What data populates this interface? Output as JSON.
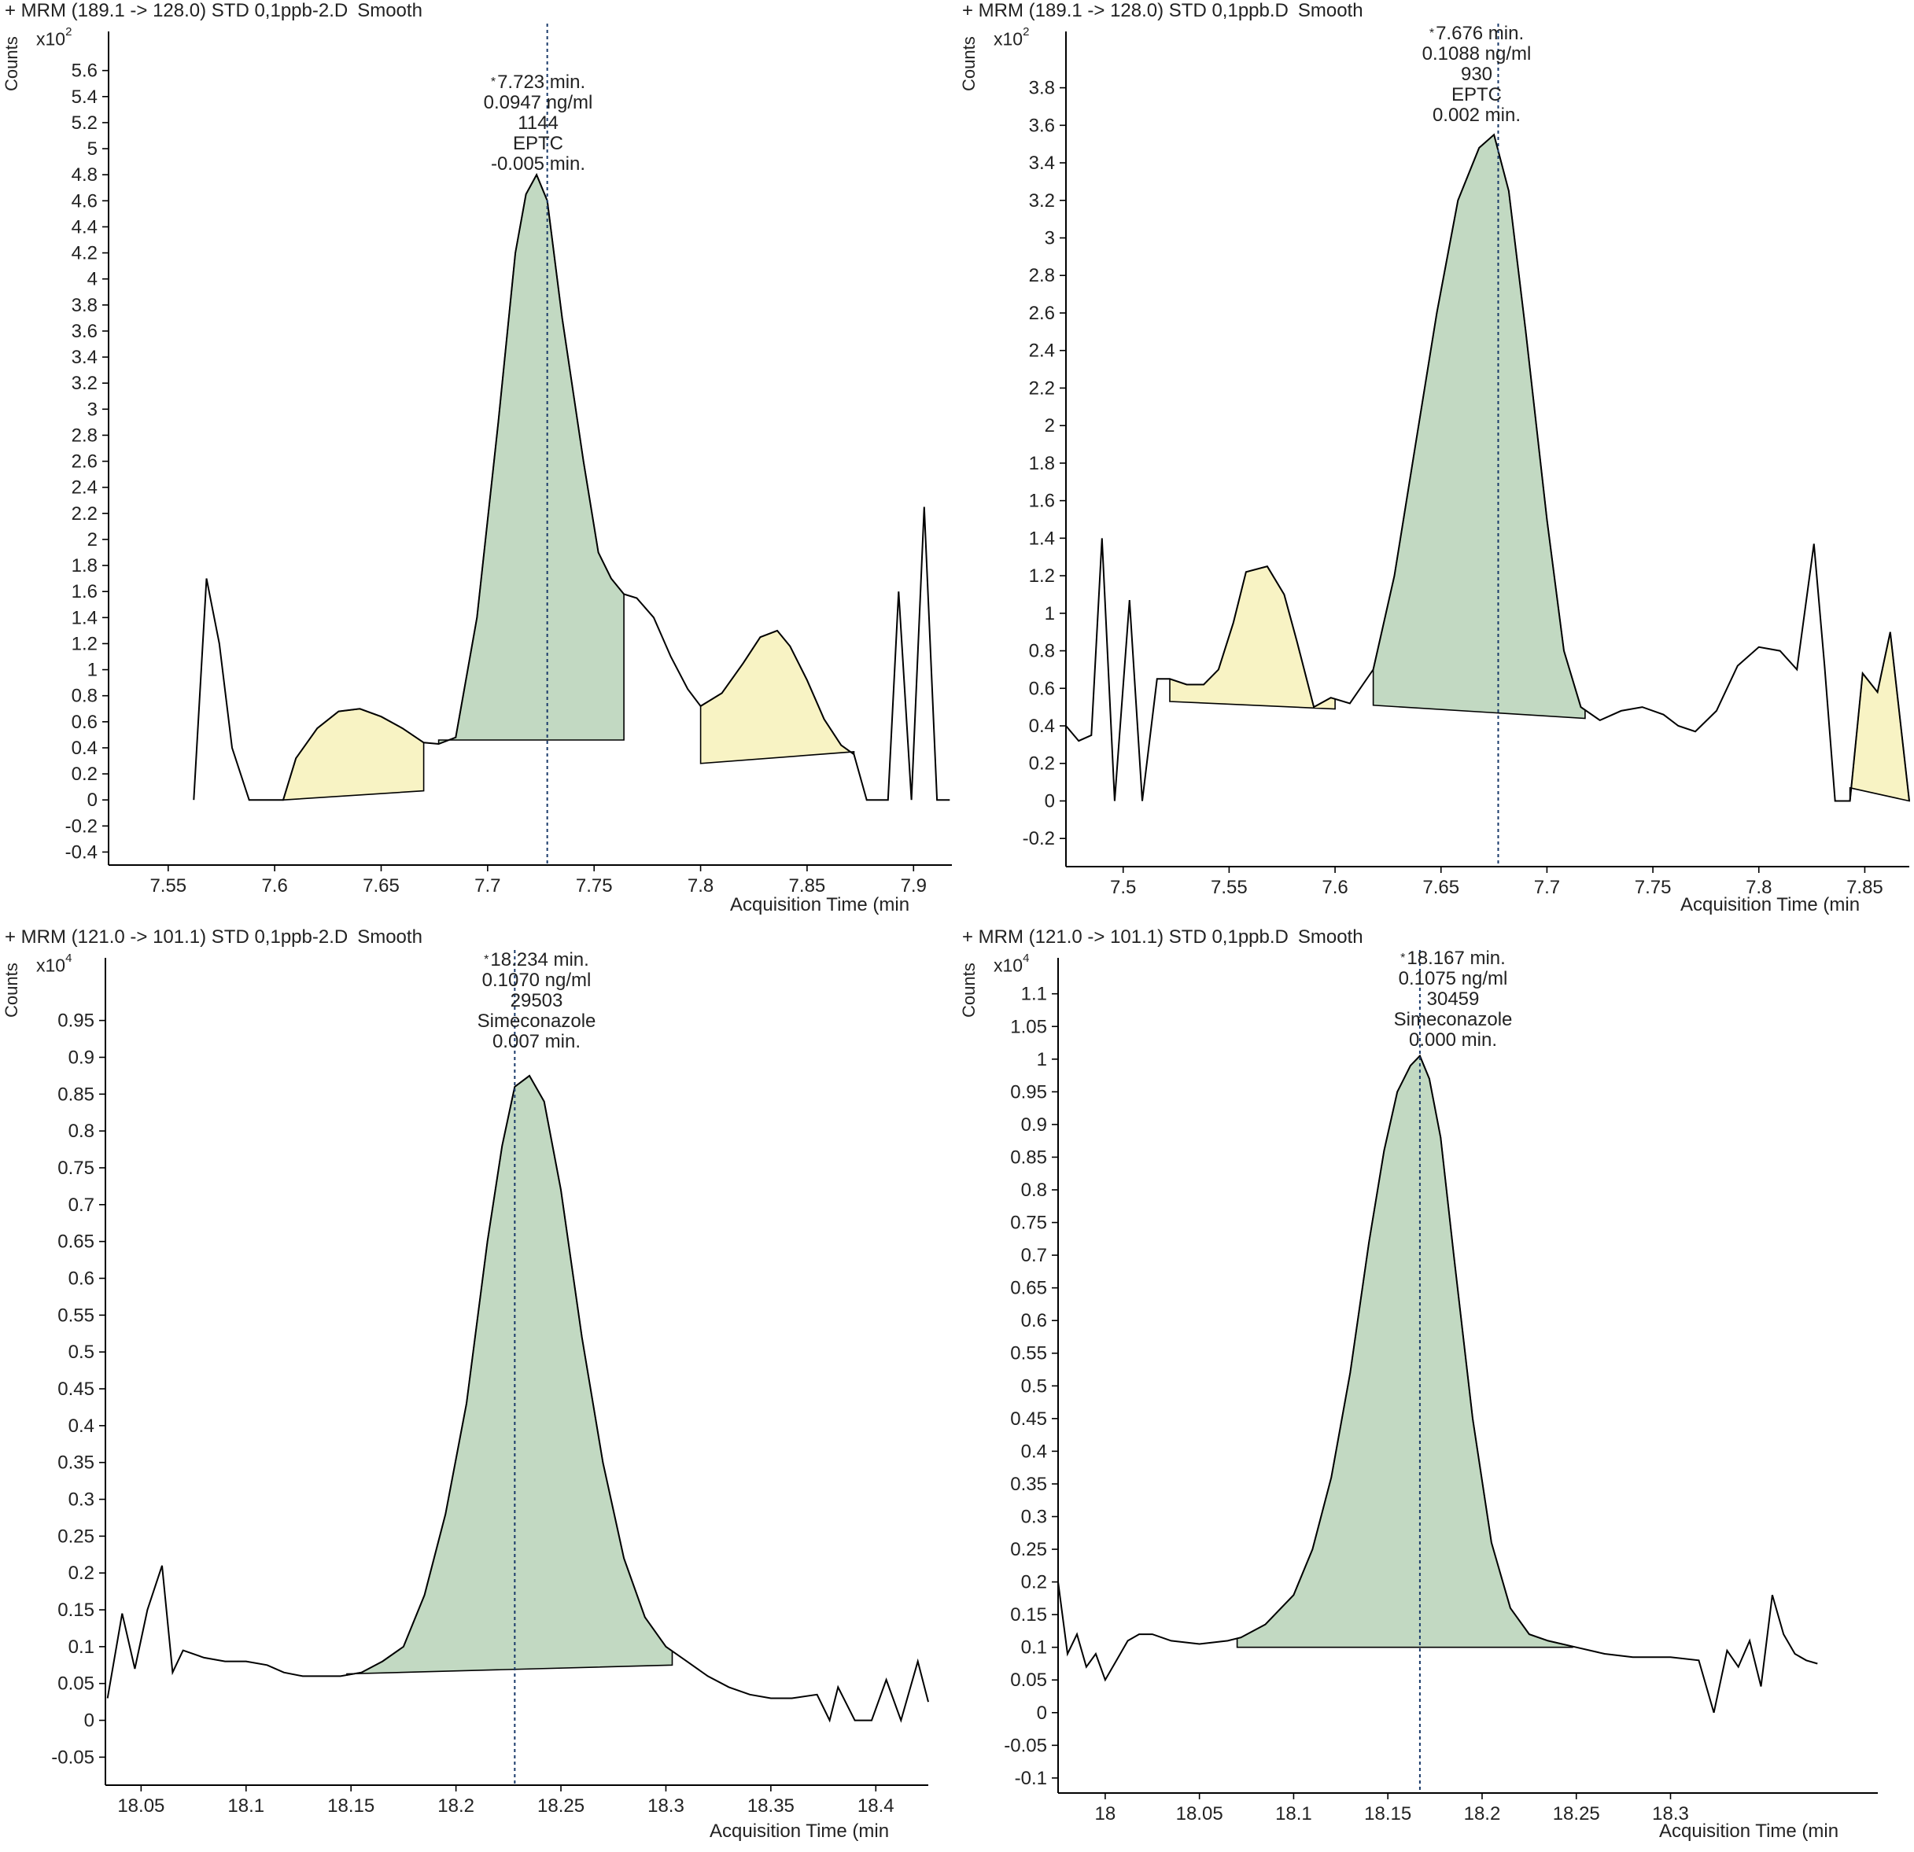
{
  "xlabel": "Acquisition Time (min",
  "ylabel": "Counts",
  "colors": {
    "peak_fill": "#c2d9c2",
    "minor_fill": "#f8f3c4",
    "trace": "#000000",
    "rt_line": "#1a3a6a"
  },
  "chart_data": [
    {
      "type": "line",
      "title": "+ MRM (189.1 -> 128.0) STD 0,1ppb-2.D",
      "mode": "Smooth",
      "multiplier": "x10",
      "multiplier_exp": "2",
      "xlim": [
        7.522,
        7.918
      ],
      "ylim": [
        -0.5,
        5.9
      ],
      "xticks": [
        "7.55",
        "7.6",
        "7.65",
        "7.7",
        "7.75",
        "7.8",
        "7.85",
        "7.9"
      ],
      "yticks": [
        "-0.4",
        "-0.2",
        "0",
        "0.2",
        "0.4",
        "0.6",
        "0.8",
        "1",
        "1.2",
        "1.4",
        "1.6",
        "1.8",
        "2",
        "2.2",
        "2.4",
        "2.6",
        "2.8",
        "3",
        "3.2",
        "3.4",
        "3.6",
        "3.8",
        "4",
        "4.2",
        "4.4",
        "4.6",
        "4.8",
        "5",
        "5.2",
        "5.4",
        "5.6"
      ],
      "x": [
        7.562,
        7.568,
        7.574,
        7.58,
        7.588,
        7.604,
        7.61,
        7.62,
        7.63,
        7.64,
        7.65,
        7.66,
        7.67,
        7.677,
        7.685,
        7.695,
        7.705,
        7.713,
        7.718,
        7.723,
        7.728,
        7.735,
        7.745,
        7.752,
        7.758,
        7.764,
        7.77,
        7.778,
        7.786,
        7.794,
        7.8,
        7.81,
        7.82,
        7.828,
        7.836,
        7.842,
        7.85,
        7.858,
        7.866,
        7.872,
        7.878,
        7.888,
        7.893,
        7.899,
        7.905,
        7.911,
        7.917
      ],
      "y": [
        0,
        1.7,
        1.2,
        0.4,
        0,
        0,
        0.32,
        0.55,
        0.68,
        0.7,
        0.64,
        0.55,
        0.44,
        0.43,
        0.48,
        1.4,
        2.9,
        4.2,
        4.65,
        4.8,
        4.6,
        3.7,
        2.6,
        1.9,
        1.7,
        1.58,
        1.55,
        1.4,
        1.1,
        0.85,
        0.72,
        0.82,
        1.05,
        1.25,
        1.3,
        1.18,
        0.92,
        0.62,
        0.42,
        0.35,
        0,
        0,
        1.6,
        0,
        2.25,
        0,
        0
      ],
      "peak": {
        "x_start": 7.677,
        "x_end": 7.764,
        "base_start": 0.46,
        "base_end": 0.46
      },
      "minor_peaks": [
        {
          "x_start": 7.604,
          "x_end": 7.67,
          "base_start": 0.0,
          "base_end": 0.07
        },
        {
          "x_start": 7.8,
          "x_end": 7.872,
          "base_start": 0.28,
          "base_end": 0.37
        }
      ],
      "rt": 7.728,
      "annotation": [
        "7.723 min.",
        "0.0947 ng/ml",
        "1144",
        "EPTC",
        "-0.005 min."
      ]
    },
    {
      "type": "line",
      "title": "+ MRM (189.1 -> 128.0) STD 0,1ppb.D",
      "mode": "Smooth",
      "multiplier": "x10",
      "multiplier_exp": "2",
      "xlim": [
        7.473,
        7.871
      ],
      "ylim": [
        -0.35,
        4.1
      ],
      "xticks": [
        "7.5",
        "7.55",
        "7.6",
        "7.65",
        "7.7",
        "7.75",
        "7.8",
        "7.85"
      ],
      "yticks": [
        "-0.2",
        "0",
        "0.2",
        "0.4",
        "0.6",
        "0.8",
        "1",
        "1.2",
        "1.4",
        "1.6",
        "1.8",
        "2",
        "2.2",
        "2.4",
        "2.6",
        "2.8",
        "3",
        "3.2",
        "3.4",
        "3.6",
        "3.8"
      ],
      "x": [
        7.473,
        7.479,
        7.485,
        7.49,
        7.496,
        7.503,
        7.509,
        7.516,
        7.522,
        7.53,
        7.538,
        7.545,
        7.552,
        7.558,
        7.568,
        7.576,
        7.582,
        7.59,
        7.598,
        7.607,
        7.618,
        7.628,
        7.638,
        7.648,
        7.658,
        7.668,
        7.675,
        7.682,
        7.69,
        7.7,
        7.708,
        7.716,
        7.725,
        7.735,
        7.745,
        7.755,
        7.762,
        7.77,
        7.78,
        7.79,
        7.8,
        7.81,
        7.818,
        7.826,
        7.831,
        7.836,
        7.84,
        7.843,
        7.849,
        7.856,
        7.862,
        7.871
      ],
      "y": [
        0.4,
        0.32,
        0.35,
        1.4,
        0,
        1.07,
        0,
        0.65,
        0.65,
        0.62,
        0.62,
        0.7,
        0.95,
        1.22,
        1.25,
        1.1,
        0.85,
        0.5,
        0.55,
        0.52,
        0.7,
        1.2,
        1.9,
        2.6,
        3.2,
        3.48,
        3.55,
        3.25,
        2.5,
        1.5,
        0.8,
        0.5,
        0.43,
        0.48,
        0.5,
        0.46,
        0.4,
        0.37,
        0.48,
        0.72,
        0.82,
        0.8,
        0.7,
        1.37,
        0.72,
        0,
        0,
        0,
        0.68,
        0.58,
        0.9,
        0
      ],
      "peak": {
        "x_start": 7.618,
        "x_end": 7.718,
        "base_start": 0.51,
        "base_end": 0.44
      },
      "minor_peaks": [
        {
          "x_start": 7.522,
          "x_end": 7.6,
          "base_start": 0.53,
          "base_end": 0.49
        },
        {
          "x_start": 7.843,
          "x_end": 7.871,
          "base_start": 0.07,
          "base_end": 0.0
        }
      ],
      "rt": 7.677,
      "annotation": [
        "7.676 min.",
        "0.1088 ng/ml",
        "930",
        "EPTC",
        "0.002 min."
      ]
    },
    {
      "type": "line",
      "title": "+ MRM (121.0 -> 101.1) STD 0,1ppb-2.D",
      "mode": "Smooth",
      "multiplier": "x10",
      "multiplier_exp": "4",
      "xlim": [
        18.033,
        18.425
      ],
      "ylim": [
        -0.088,
        1.035
      ],
      "xticks": [
        "18.05",
        "18.1",
        "18.15",
        "18.2",
        "18.25",
        "18.3",
        "18.35",
        "18.4"
      ],
      "yticks": [
        "-0.05",
        "0",
        "0.05",
        "0.1",
        "0.15",
        "0.2",
        "0.25",
        "0.3",
        "0.35",
        "0.4",
        "0.45",
        "0.5",
        "0.55",
        "0.6",
        "0.65",
        "0.7",
        "0.75",
        "0.8",
        "0.85",
        "0.9",
        "0.95"
      ],
      "x": [
        18.034,
        18.041,
        18.047,
        18.053,
        18.06,
        18.065,
        18.07,
        18.08,
        18.09,
        18.1,
        18.11,
        18.118,
        18.127,
        18.135,
        18.145,
        18.155,
        18.165,
        18.175,
        18.185,
        18.195,
        18.205,
        18.215,
        18.222,
        18.228,
        18.235,
        18.242,
        18.25,
        18.26,
        18.27,
        18.28,
        18.29,
        18.3,
        18.31,
        18.32,
        18.33,
        18.34,
        18.35,
        18.36,
        18.372,
        18.378,
        18.382,
        18.39,
        18.398,
        18.405,
        18.412,
        18.42,
        18.425
      ],
      "y": [
        0.03,
        0.145,
        0.07,
        0.15,
        0.21,
        0.065,
        0.095,
        0.085,
        0.08,
        0.08,
        0.075,
        0.065,
        0.06,
        0.06,
        0.06,
        0.065,
        0.08,
        0.1,
        0.17,
        0.28,
        0.43,
        0.65,
        0.78,
        0.86,
        0.875,
        0.84,
        0.72,
        0.52,
        0.35,
        0.22,
        0.14,
        0.1,
        0.08,
        0.06,
        0.045,
        0.035,
        0.03,
        0.03,
        0.035,
        0.0,
        0.045,
        0.0,
        0.0,
        0.055,
        0.0,
        0.08,
        0.025
      ],
      "peak": {
        "x_start": 18.148,
        "x_end": 18.303,
        "base_start": 0.063,
        "base_end": 0.075
      },
      "minor_peaks": [],
      "rt": 18.228,
      "annotation": [
        "18.234 min.",
        "0.1070 ng/ml",
        "29503",
        "Simeconazole",
        "0.007 min."
      ]
    },
    {
      "type": "line",
      "title": "+ MRM (121.0 -> 101.1) STD 0,1ppb.D",
      "mode": "Smooth",
      "multiplier": "x10",
      "multiplier_exp": "4",
      "xlim": [
        17.975,
        18.41
      ],
      "ylim": [
        -0.123,
        1.155
      ],
      "xticks": [
        "18",
        "18.05",
        "18.1",
        "18.15",
        "18.2",
        "18.25",
        "18.3"
      ],
      "yticks": [
        "-0.1",
        "-0.05",
        "0",
        "0.05",
        "0.1",
        "0.15",
        "0.2",
        "0.25",
        "0.3",
        "0.35",
        "0.4",
        "0.45",
        "0.5",
        "0.55",
        "0.6",
        "0.65",
        "0.7",
        "0.75",
        "0.8",
        "0.85",
        "0.9",
        "0.95",
        "1",
        "1.05",
        "1.1"
      ],
      "x": [
        17.975,
        17.98,
        17.985,
        17.99,
        17.995,
        18.0,
        18.006,
        18.012,
        18.018,
        18.025,
        18.035,
        18.05,
        18.065,
        18.072,
        18.085,
        18.1,
        18.11,
        18.12,
        18.13,
        18.14,
        18.148,
        18.155,
        18.162,
        18.167,
        18.172,
        18.178,
        18.185,
        18.195,
        18.205,
        18.215,
        18.225,
        18.235,
        18.25,
        18.265,
        18.28,
        18.3,
        18.315,
        18.323,
        18.33,
        18.336,
        18.342,
        18.348,
        18.354,
        18.36,
        18.366,
        18.372,
        18.378
      ],
      "y": [
        0.2,
        0.09,
        0.12,
        0.07,
        0.09,
        0.05,
        0.08,
        0.11,
        0.12,
        0.12,
        0.11,
        0.105,
        0.11,
        0.115,
        0.135,
        0.18,
        0.25,
        0.36,
        0.52,
        0.72,
        0.86,
        0.95,
        0.99,
        1.005,
        0.97,
        0.88,
        0.7,
        0.45,
        0.26,
        0.16,
        0.12,
        0.11,
        0.1,
        0.09,
        0.085,
        0.085,
        0.08,
        0.0,
        0.095,
        0.07,
        0.11,
        0.04,
        0.18,
        0.12,
        0.09,
        0.08,
        0.075
      ],
      "peak": {
        "x_start": 18.07,
        "x_end": 18.248,
        "base_start": 0.1,
        "base_end": 0.1
      },
      "minor_peaks": [],
      "rt": 18.167,
      "annotation": [
        "18.167 min.",
        "0.1075 ng/ml",
        "30459",
        "Simeconazole",
        "0.000 min."
      ]
    }
  ]
}
